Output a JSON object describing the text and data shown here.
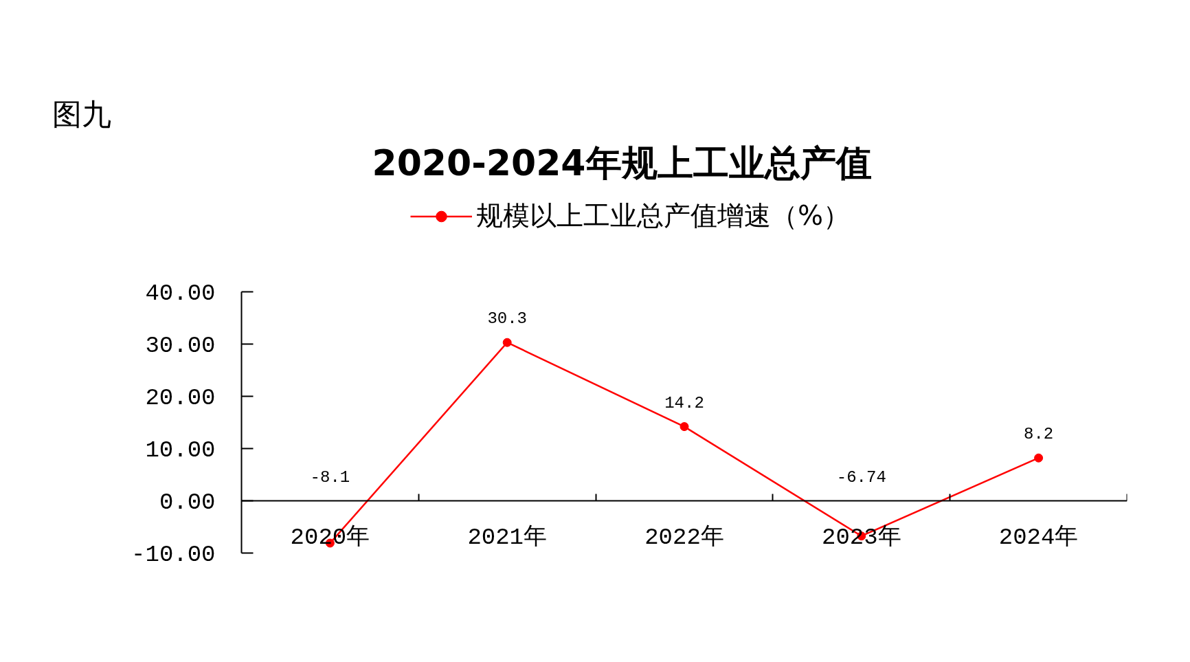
{
  "chart_data": {
    "type": "line",
    "title": "2020-2024年规上工业总产值",
    "annotations": [
      "图九"
    ],
    "categories": [
      "2020年",
      "2021年",
      "2022年",
      "2023年",
      "2024年"
    ],
    "series": [
      {
        "name": "规模以上工业总产值增速（%）",
        "color": "#ff0000",
        "values": [
          -8.1,
          30.3,
          14.2,
          -6.74,
          8.2
        ]
      }
    ],
    "ylim": [
      -10,
      40
    ],
    "yticks": [
      {
        "value": -10,
        "label": "-10.00"
      },
      {
        "value": 0,
        "label": "0.00"
      },
      {
        "value": 10,
        "label": "10.00"
      },
      {
        "value": 20,
        "label": "20.00"
      },
      {
        "value": 30,
        "label": "30.00"
      },
      {
        "value": 40,
        "label": "40.00"
      }
    ],
    "grid": false,
    "legend": "top",
    "marker": "circle",
    "line_style": "solid",
    "data_labels": true
  }
}
